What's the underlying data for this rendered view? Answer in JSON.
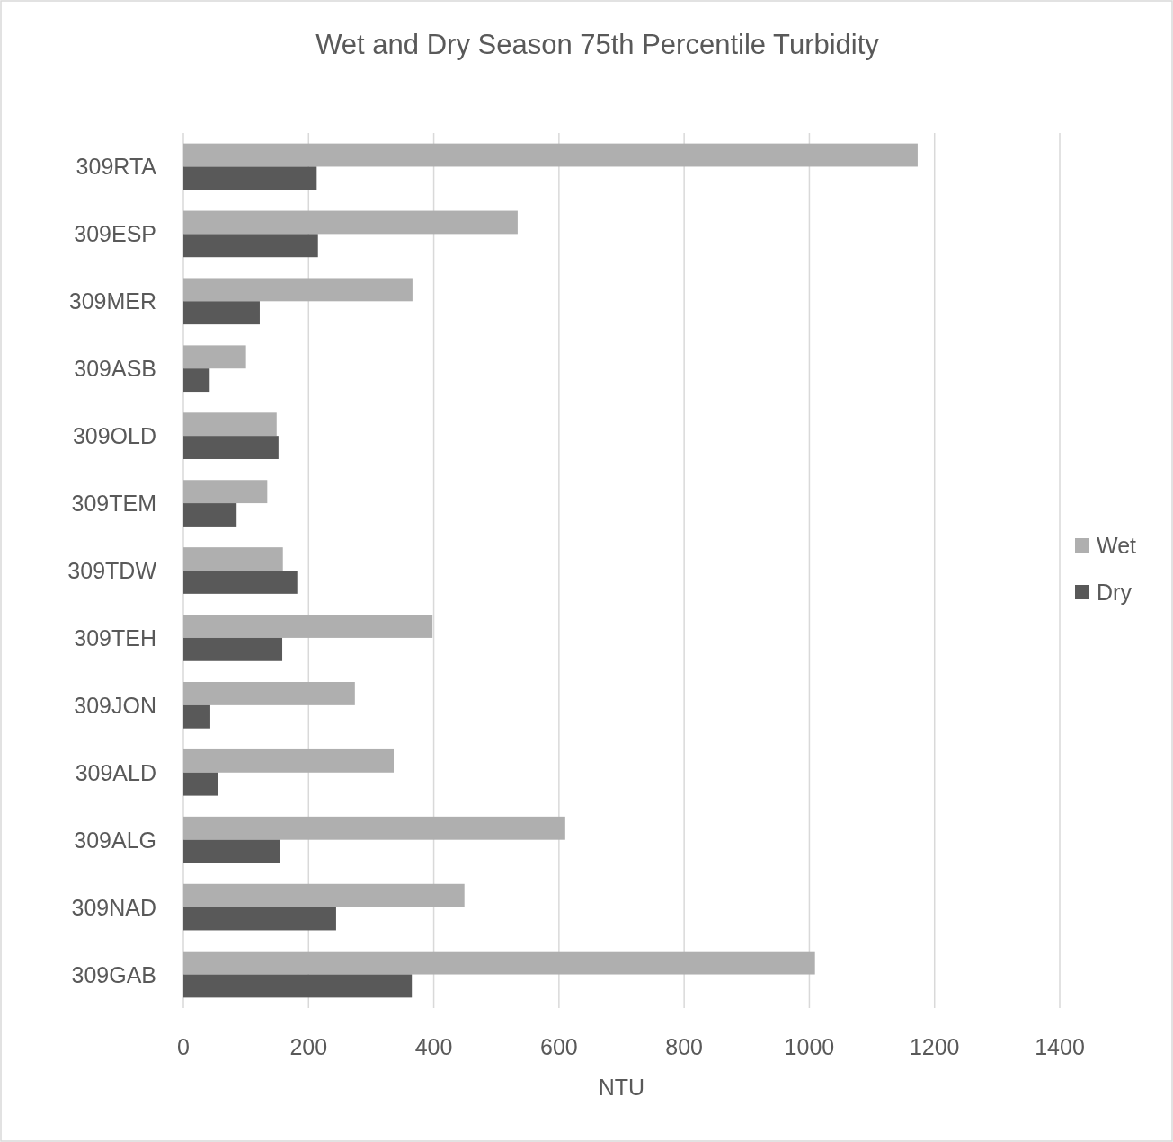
{
  "chart_data": {
    "type": "bar",
    "orientation": "horizontal",
    "title": "Wet and Dry Season 75th Percentile Turbidity",
    "xlabel": "NTU",
    "categories": [
      "309RTA",
      "309ESP",
      "309MER",
      "309ASB",
      "309OLD",
      "309TEM",
      "309TDW",
      "309TEH",
      "309JON",
      "309ALD",
      "309ALG",
      "309NAD",
      "309GAB"
    ],
    "series": [
      {
        "name": "Wet",
        "color": "#afafaf",
        "values": [
          1173,
          534,
          366,
          100,
          149,
          134,
          159,
          398,
          274,
          336,
          610,
          449,
          1009
        ]
      },
      {
        "name": "Dry",
        "color": "#595959",
        "values": [
          213,
          215,
          122,
          42,
          152,
          85,
          182,
          158,
          43,
          56,
          155,
          244,
          365
        ]
      }
    ],
    "xlim": [
      0,
      1400
    ],
    "xticks": [
      0,
      200,
      400,
      600,
      800,
      1000,
      1200,
      1400
    ],
    "grid": "x",
    "legend": "right"
  }
}
